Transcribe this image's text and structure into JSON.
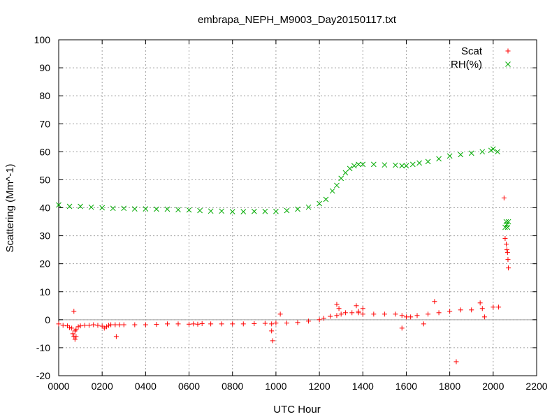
{
  "chart_data": {
    "type": "scatter",
    "title": "embrapa_NEPH_M9003_Day20150117.txt",
    "xlabel": "UTC Hour",
    "ylabel": "Scattering (Mm^-1)",
    "xlim": [
      0,
      2200
    ],
    "ylim": [
      -20,
      100
    ],
    "x_ticks": [
      "0000",
      "0200",
      "0400",
      "0600",
      "0800",
      "1000",
      "1200",
      "1400",
      "1600",
      "1800",
      "2000",
      "2200"
    ],
    "y_ticks": [
      "-20",
      "-10",
      "0",
      "10",
      "20",
      "30",
      "40",
      "50",
      "60",
      "70",
      "80",
      "90",
      "100"
    ],
    "grid": true,
    "zero_line": true,
    "legend_position": "top-right",
    "series": [
      {
        "name": "Scat",
        "marker": "plus",
        "color": "#ff0000",
        "x": [
          0,
          20,
          40,
          50,
          60,
          65,
          70,
          75,
          80,
          90,
          100,
          120,
          140,
          160,
          180,
          200,
          210,
          220,
          230,
          240,
          260,
          280,
          300,
          350,
          400,
          450,
          500,
          550,
          600,
          620,
          640,
          660,
          700,
          750,
          800,
          850,
          900,
          950,
          980,
          1000,
          1050,
          1100,
          1150,
          1200,
          1220,
          1250,
          1280,
          1300,
          1320,
          1350,
          1380,
          1400,
          1450,
          1500,
          1550,
          1580,
          1600,
          1620,
          1650,
          1700,
          1750,
          1800,
          1850,
          1900,
          1950,
          2000,
          2025,
          70,
          75,
          80,
          265,
          980,
          985,
          1020,
          1280,
          1290,
          1370,
          1380,
          1400,
          1730,
          1830,
          1940,
          1960,
          1580,
          1680,
          2050,
          2055,
          2060,
          2063,
          2066,
          2068,
          2070
        ],
        "y": [
          -1.5,
          -2,
          -2.2,
          -2.8,
          -3,
          -5,
          -6,
          -4,
          -3.5,
          -2.5,
          -2.2,
          -2,
          -2,
          -1.8,
          -2,
          -2.3,
          -3,
          -2.5,
          -2,
          -1.8,
          -1.8,
          -1.8,
          -1.8,
          -1.8,
          -1.8,
          -1.7,
          -1.5,
          -1.5,
          -1.6,
          -1.5,
          -1.6,
          -1.4,
          -1.5,
          -1.5,
          -1.5,
          -1.5,
          -1.4,
          -1.3,
          -1.5,
          -1.2,
          -1.2,
          -1.0,
          -0.5,
          0,
          0.5,
          1.2,
          1.5,
          2,
          2.5,
          2.5,
          2.5,
          2.0,
          2.0,
          2.0,
          2.0,
          1.5,
          1.0,
          1.0,
          1.5,
          2.0,
          2.5,
          3.0,
          3.5,
          3.5,
          4.0,
          4.5,
          4.5,
          3,
          -7,
          -6,
          -6,
          -4,
          -7.5,
          2,
          5.5,
          4,
          5,
          3,
          4,
          6.5,
          -15,
          6,
          1,
          -3,
          -1.5,
          43.5,
          29,
          27,
          25,
          24,
          21.5,
          18.5
        ]
      },
      {
        "name": "RH(%)",
        "marker": "cross",
        "color": "#00aa00",
        "x": [
          0,
          50,
          100,
          150,
          200,
          250,
          300,
          350,
          400,
          450,
          500,
          550,
          600,
          650,
          700,
          750,
          800,
          850,
          900,
          950,
          1000,
          1050,
          1100,
          1150,
          1200,
          1230,
          1260,
          1280,
          1300,
          1320,
          1340,
          1360,
          1380,
          1400,
          1450,
          1500,
          1550,
          1580,
          1600,
          1630,
          1660,
          1700,
          1750,
          1800,
          1850,
          1900,
          1950,
          1990,
          2000,
          2020,
          2055,
          2060,
          2063,
          2066,
          2070
        ],
        "y": [
          41,
          40.5,
          40.5,
          40.2,
          40,
          39.8,
          39.8,
          39.6,
          39.6,
          39.5,
          39.5,
          39.3,
          39.2,
          39.0,
          38.8,
          38.8,
          38.6,
          38.6,
          38.7,
          38.7,
          38.7,
          39,
          39.5,
          40.2,
          41.5,
          43,
          46,
          48,
          50.5,
          52.5,
          54,
          55,
          55.5,
          55.5,
          55.5,
          55.3,
          55.2,
          55,
          55,
          55.5,
          56,
          56.5,
          57.5,
          58.5,
          59,
          59.5,
          60,
          60.5,
          61,
          60,
          33,
          35,
          34,
          33,
          35
        ]
      }
    ]
  }
}
